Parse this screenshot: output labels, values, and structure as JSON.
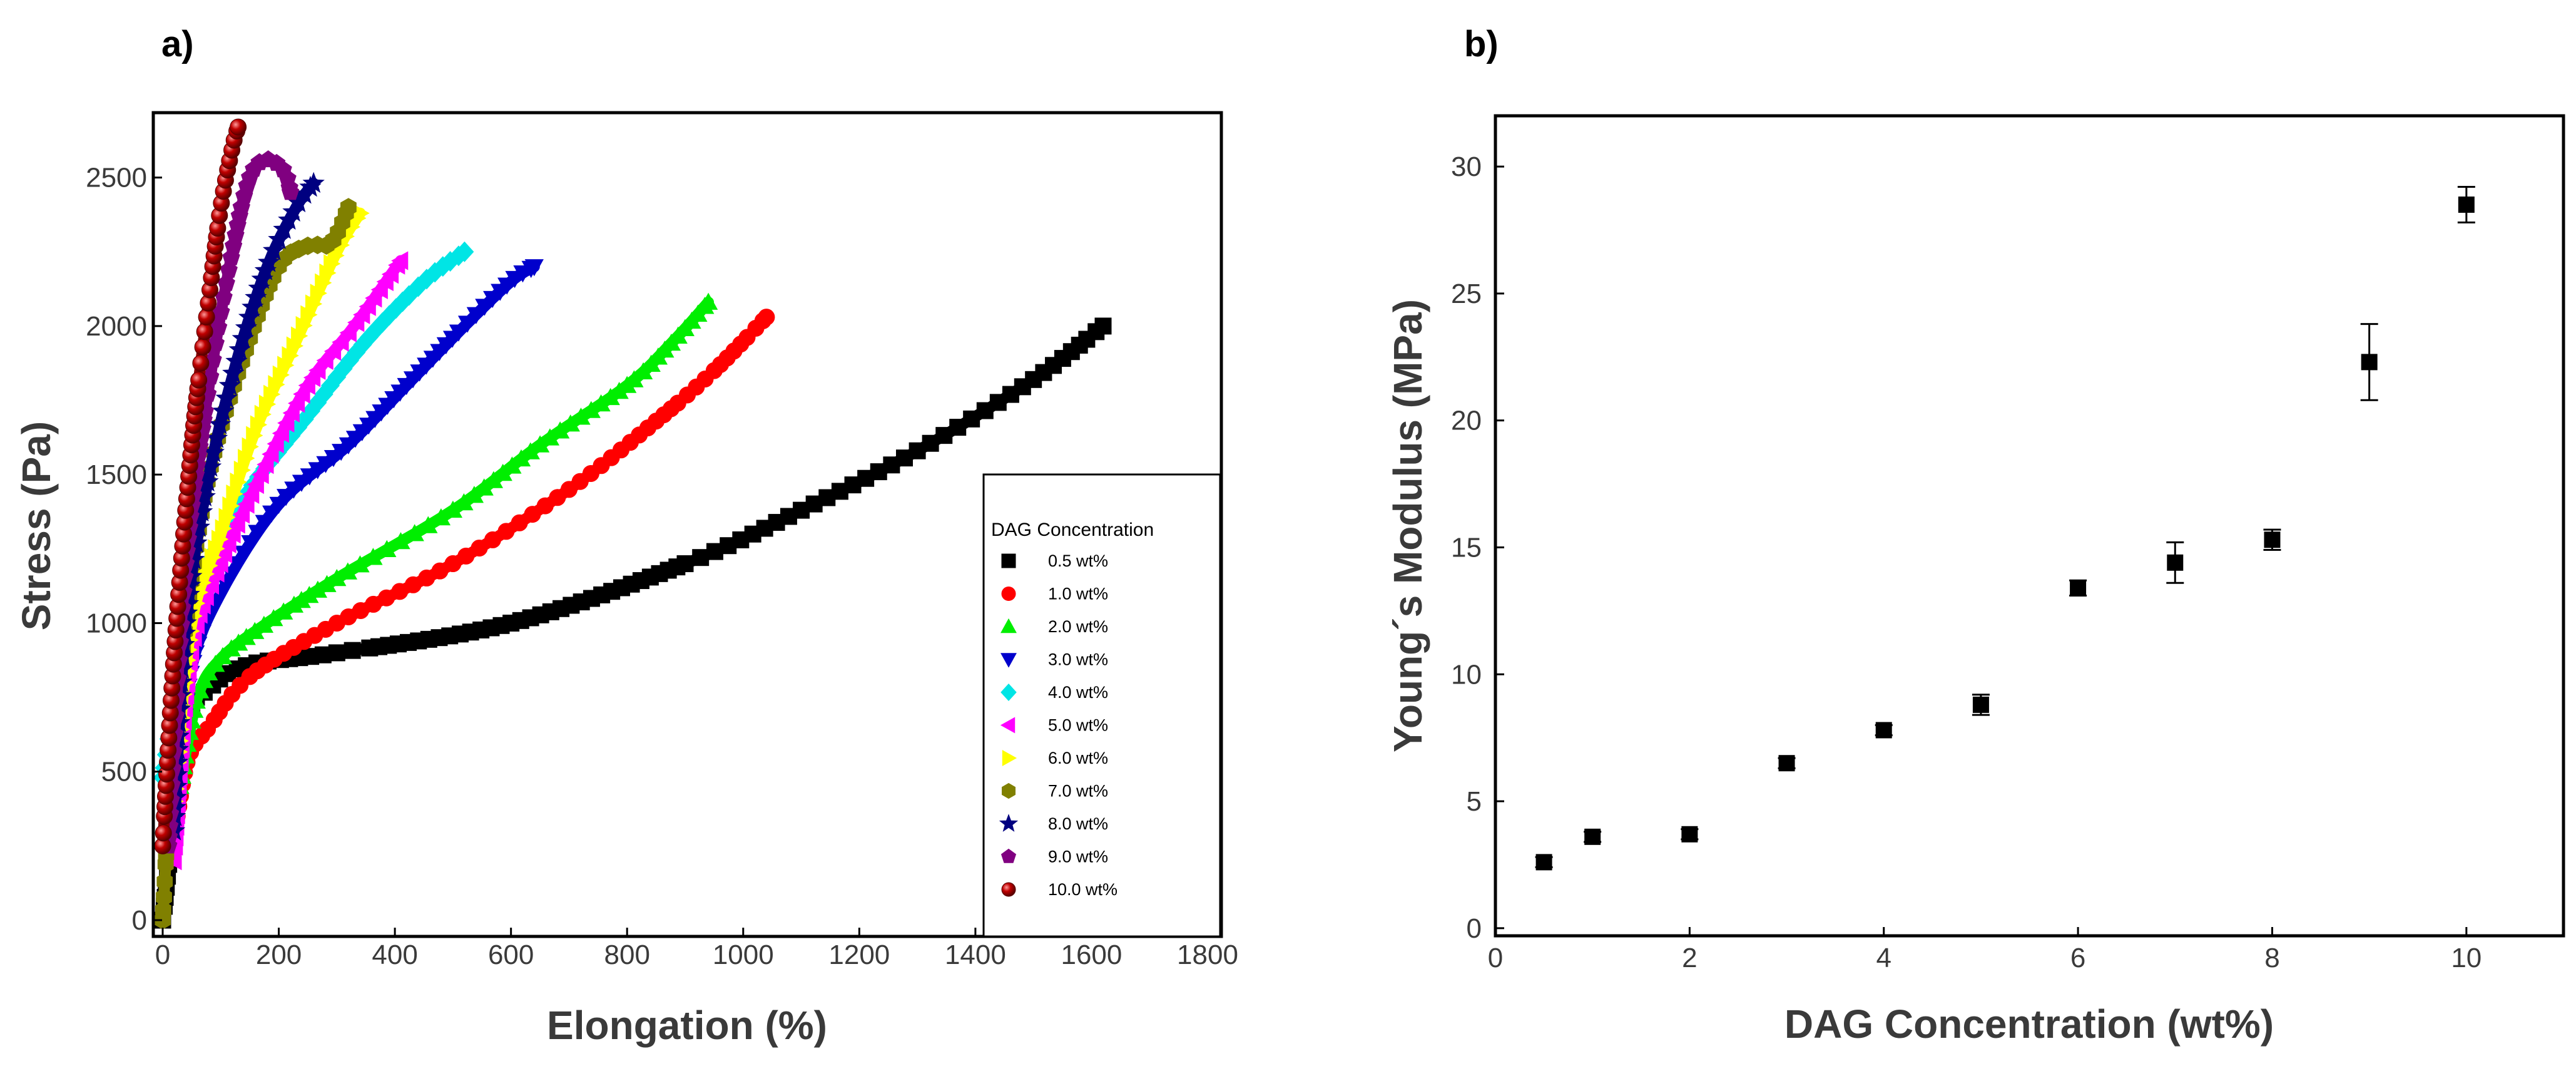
{
  "chart_data": [
    {
      "panel": "a)",
      "type": "scatter",
      "xlabel": "Elongation (%)",
      "ylabel": "Stress (Pa)",
      "xlim": [
        0,
        1800
      ],
      "ylim": [
        0,
        2750
      ],
      "xticks": [
        "0",
        "200",
        "400",
        "600",
        "800",
        "1000",
        "1200",
        "1400",
        "1600",
        "1800"
      ],
      "yticks": [
        "0",
        "500",
        "1000",
        "1500",
        "2000",
        "2500"
      ],
      "legend_title": "DAG Concentration",
      "series": [
        {
          "name": "0.5 wt%",
          "color": "#000000",
          "marker": "square",
          "x": [
            0,
            40,
            80,
            150,
            300,
            600,
            900,
            1100,
            1300,
            1500,
            1620
          ],
          "y": [
            0,
            650,
            780,
            860,
            900,
            1000,
            1200,
            1380,
            1580,
            1820,
            2000
          ]
        },
        {
          "name": "1.0 wt%",
          "color": "#ff0000",
          "marker": "circle",
          "x": [
            25,
            45,
            80,
            150,
            300,
            500,
            700,
            850,
            950,
            1040
          ],
          "y": [
            350,
            550,
            650,
            820,
            1000,
            1200,
            1450,
            1680,
            1850,
            2030
          ]
        },
        {
          "name": "2.0 wt%",
          "color": "#00ee00",
          "marker": "triangle-up",
          "x": [
            30,
            60,
            100,
            180,
            300,
            500,
            650,
            800,
            880,
            940
          ],
          "y": [
            450,
            750,
            880,
            1000,
            1150,
            1380,
            1600,
            1800,
            1950,
            2080
          ]
        },
        {
          "name": "3.0 wt%",
          "color": "#0000cc",
          "marker": "triangle-down",
          "x": [
            25,
            50,
            100,
            200,
            320,
            420,
            520,
            600,
            640
          ],
          "y": [
            450,
            850,
            1100,
            1400,
            1600,
            1800,
            2000,
            2150,
            2200
          ]
        },
        {
          "name": "4.0 wt%",
          "color": "#00e5e5",
          "marker": "diamond",
          "x": [
            0,
            40,
            80,
            150,
            250,
            350,
            450,
            520
          ],
          "y": [
            480,
            950,
            1200,
            1450,
            1700,
            1950,
            2150,
            2250
          ]
        },
        {
          "name": "5.0 wt%",
          "color": "#ff00ff",
          "marker": "triangle-left",
          "x": [
            20,
            50,
            100,
            170,
            250,
            330,
            410
          ],
          "y": [
            200,
            900,
            1200,
            1500,
            1800,
            2000,
            2220
          ]
        },
        {
          "name": "6.0 wt%",
          "color": "#ffff00",
          "marker": "triangle-right",
          "x": [
            20,
            50,
            100,
            160,
            230,
            300,
            340
          ],
          "y": [
            400,
            1000,
            1300,
            1650,
            1950,
            2250,
            2380
          ]
        },
        {
          "name": "7.0 wt%",
          "color": "#808000",
          "marker": "hexagon",
          "x": [
            0,
            15,
            40,
            80,
            140,
            200,
            250,
            290,
            320
          ],
          "y": [
            0,
            500,
            1000,
            1500,
            1900,
            2200,
            2270,
            2280,
            2400
          ]
        },
        {
          "name": "8.0 wt%",
          "color": "#000080",
          "marker": "star",
          "x": [
            20,
            40,
            80,
            130,
            180,
            230,
            260
          ],
          "y": [
            300,
            1000,
            1500,
            1900,
            2200,
            2400,
            2480
          ]
        },
        {
          "name": "9.0 wt%",
          "color": "#800080",
          "marker": "pentagon",
          "x": [
            10,
            40,
            80,
            120,
            150,
            180,
            210,
            220
          ],
          "y": [
            250,
            1200,
            1800,
            2250,
            2500,
            2560,
            2520,
            2450
          ]
        },
        {
          "name": "10.0 wt%",
          "color": "#8b0000",
          "marker": "sphere",
          "x": [
            0,
            20,
            50,
            80,
            100,
            120,
            130
          ],
          "y": [
            250,
            900,
            1600,
            2100,
            2400,
            2600,
            2670
          ]
        }
      ]
    },
    {
      "panel": "b)",
      "type": "scatter",
      "xlabel": "DAG Concentration (wt%)",
      "ylabel": "Young´s Modulus (MPa)",
      "xlim": [
        0,
        11
      ],
      "ylim": [
        -0.3,
        32
      ],
      "xticks": [
        "0",
        "2",
        "4",
        "6",
        "8",
        "10"
      ],
      "yticks": [
        "0",
        "5",
        "10",
        "15",
        "20",
        "25",
        "30"
      ],
      "series": [
        {
          "name": "Young's Modulus",
          "x": [
            0.5,
            1,
            2,
            3,
            4,
            5,
            6,
            7,
            8,
            9,
            10
          ],
          "y": [
            2.6,
            3.6,
            3.7,
            6.5,
            7.8,
            8.8,
            13.4,
            14.4,
            15.3,
            22.3,
            28.5
          ],
          "yerr": [
            0.2,
            0.2,
            0.2,
            0.2,
            0.2,
            0.4,
            0.3,
            0.8,
            0.4,
            1.5,
            0.7
          ]
        }
      ]
    }
  ]
}
